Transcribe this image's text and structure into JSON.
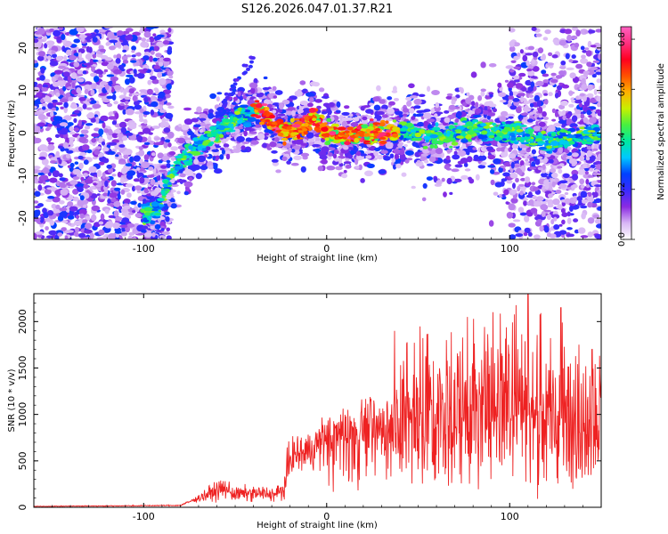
{
  "title": "S126.2026.047.01.37.R21",
  "chart_data": [
    {
      "type": "heatmap",
      "title": "",
      "xlabel": "Height of straight line (km)",
      "ylabel": "Frequency (Hz)",
      "xlim": [
        -160,
        150
      ],
      "ylim": [
        -25,
        25
      ],
      "xticks": [
        -100,
        0,
        100
      ],
      "yticks": [
        -20,
        -10,
        0,
        10,
        20
      ],
      "xtick_labels": [
        "-100",
        "0",
        "100"
      ],
      "ytick_labels": [
        "-20",
        "-10",
        "0",
        "10",
        "20"
      ],
      "colorbar": {
        "label": "Normalized spectral amplitude",
        "range": [
          0.0,
          0.85
        ],
        "ticks": [
          0.0,
          0.2,
          0.4,
          0.6,
          0.8
        ],
        "tick_labels": [
          "0.0",
          "0.2",
          "0.4",
          "0.6",
          "0.8"
        ],
        "colors": [
          "#ffffff",
          "#d8b6f5",
          "#8a2be2",
          "#3a2bff",
          "#0040ff",
          "#00c8ff",
          "#00e8a0",
          "#48f040",
          "#c8f000",
          "#ffb000",
          "#ff5000",
          "#ff0020",
          "#ff3080",
          "#ff60c0"
        ]
      },
      "ridge": [
        {
          "x": -160,
          "y": 0
        },
        {
          "x": -100,
          "y": -19
        },
        {
          "x": -92,
          "y": -18
        },
        {
          "x": -85,
          "y": -10
        },
        {
          "x": -80,
          "y": -7
        },
        {
          "x": -70,
          "y": -3
        },
        {
          "x": -60,
          "y": 0
        },
        {
          "x": -50,
          "y": 3
        },
        {
          "x": -38,
          "y": 6
        },
        {
          "x": -30,
          "y": 2
        },
        {
          "x": -22,
          "y": 0
        },
        {
          "x": -15,
          "y": 1
        },
        {
          "x": -8,
          "y": 4
        },
        {
          "x": 0,
          "y": 0
        },
        {
          "x": 10,
          "y": -0.5
        },
        {
          "x": 20,
          "y": 0
        },
        {
          "x": 30,
          "y": 0
        },
        {
          "x": 45,
          "y": 0.5
        },
        {
          "x": 60,
          "y": -1
        },
        {
          "x": 80,
          "y": 1
        },
        {
          "x": 100,
          "y": 0
        },
        {
          "x": 120,
          "y": -2
        },
        {
          "x": 135,
          "y": -1
        },
        {
          "x": 150,
          "y": 0
        }
      ]
    },
    {
      "type": "line",
      "title": "",
      "xlabel": "Height of straight line (km)",
      "ylabel": "SNR (10 * v/v)",
      "xlim": [
        -160,
        150
      ],
      "ylim": [
        0,
        2300
      ],
      "xticks": [
        -100,
        0,
        100
      ],
      "yticks": [
        0,
        500,
        1000,
        1500,
        2000
      ],
      "xtick_labels": [
        "-100",
        "0",
        "100"
      ],
      "ytick_labels": [
        "0",
        "500",
        "1000",
        "1500",
        "2000"
      ],
      "color": "#ee2222",
      "envelope": [
        {
          "x": -160,
          "y": 10
        },
        {
          "x": -80,
          "y": 20
        },
        {
          "x": -75,
          "y": 60
        },
        {
          "x": -60,
          "y": 180
        },
        {
          "x": -55,
          "y": 200
        },
        {
          "x": -50,
          "y": 140
        },
        {
          "x": -40,
          "y": 150
        },
        {
          "x": -28,
          "y": 140
        },
        {
          "x": -23,
          "y": 200
        },
        {
          "x": -20,
          "y": 550
        },
        {
          "x": -10,
          "y": 600
        },
        {
          "x": 0,
          "y": 750
        },
        {
          "x": 20,
          "y": 880
        },
        {
          "x": 40,
          "y": 950
        },
        {
          "x": 60,
          "y": 1000
        },
        {
          "x": 80,
          "y": 1100
        },
        {
          "x": 100,
          "y": 1100
        },
        {
          "x": 120,
          "y": 1050
        },
        {
          "x": 140,
          "y": 1000
        },
        {
          "x": 150,
          "y": 1100
        }
      ],
      "peaks": [
        {
          "x": 37,
          "y": 1900
        },
        {
          "x": 77,
          "y": 2050
        },
        {
          "x": 110,
          "y": 2330
        },
        {
          "x": 128,
          "y": 2150
        },
        {
          "x": 145,
          "y": 1700
        }
      ]
    }
  ]
}
